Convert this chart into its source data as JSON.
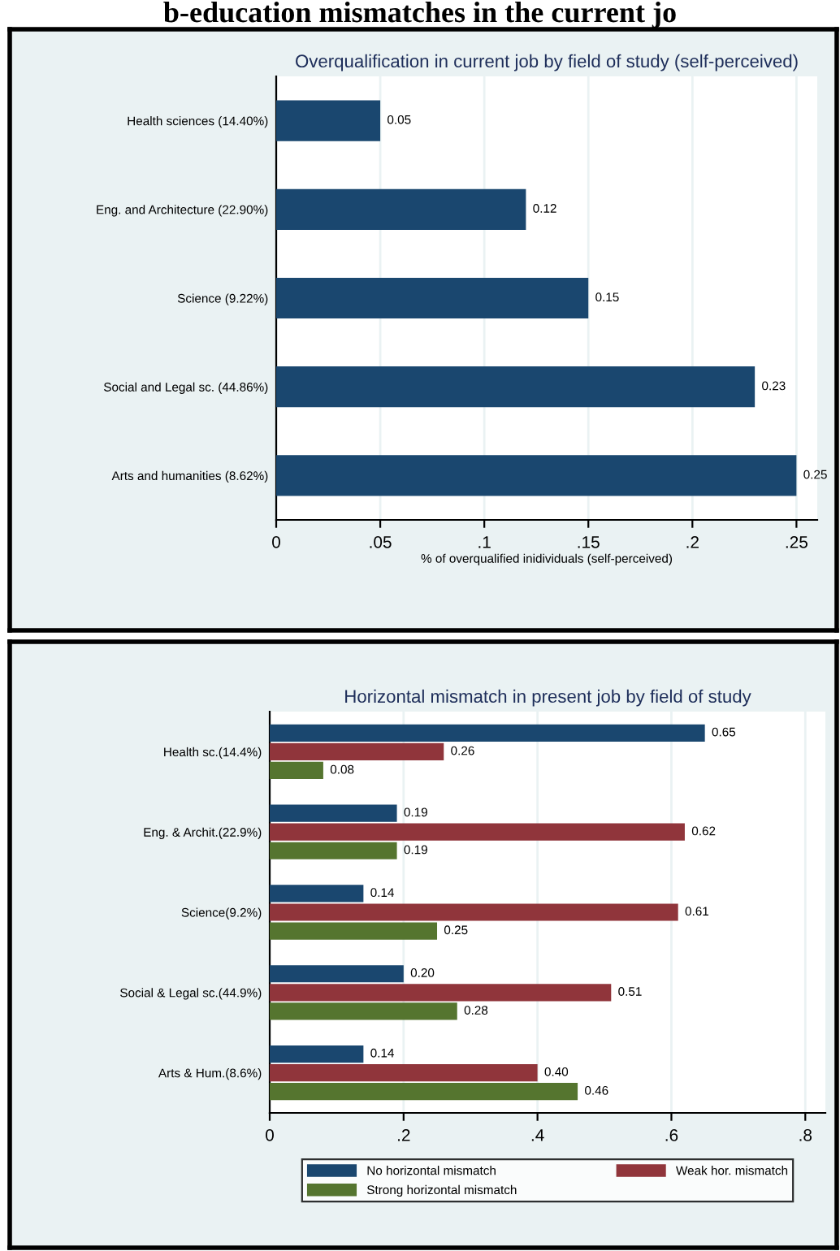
{
  "chart_data": [
    {
      "type": "bar",
      "orientation": "horizontal",
      "title": "Overqualification in current job by field of study (self-perceived)",
      "xlabel": "% of overqualified inidividuals (self-perceived)",
      "categories": [
        "Health sciences (14.40%)",
        "Eng. and Architecture (22.90%)",
        "Science (9.22%)",
        "Social and Legal sc. (44.86%)",
        "Arts and humanities (8.62%)"
      ],
      "series": [
        {
          "color": "#1a476f",
          "values": [
            0.05,
            0.12,
            0.15,
            0.23,
            0.25
          ]
        }
      ],
      "xlim": [
        0,
        0.26
      ],
      "xticks": [
        0,
        {
          "value": 0.05,
          "label": ".05"
        },
        {
          "value": 0.1,
          "label": ".1"
        },
        {
          "value": 0.15,
          "label": ".15"
        },
        {
          "value": 0.2,
          "label": ".2"
        },
        {
          "value": 0.25,
          "label": ".25"
        }
      ],
      "grid": "x",
      "data_labels": true,
      "legend": false,
      "annotations": [
        "b-education mismatches in the current jo"
      ]
    },
    {
      "type": "bar",
      "orientation": "horizontal",
      "title": "Horizontal mismatch in present job by field of study",
      "categories": [
        "Health sc.(14.4%)",
        "Eng. & Archit.(22.9%)",
        "Science(9.2%)",
        "Social & Legal sc.(44.9%)",
        "Arts & Hum.(8.6%)"
      ],
      "series": [
        {
          "name": "No horizontal mismatch",
          "color": "#1a476f",
          "values": [
            0.65,
            0.19,
            0.14,
            0.2,
            0.14
          ],
          "value_labels": [
            "0.65",
            "0.19",
            "0.14",
            "0.20",
            "0.14"
          ]
        },
        {
          "name": "Weak hor. mismatch",
          "color": "#90353b",
          "values": [
            0.26,
            0.62,
            0.61,
            0.51,
            0.4
          ],
          "value_labels": [
            "0.26",
            "0.62",
            "0.61",
            "0.51",
            "0.40"
          ]
        },
        {
          "name": "Strong horizontal mismatch",
          "color": "#55752f",
          "values": [
            0.08,
            0.19,
            0.25,
            0.28,
            0.46
          ],
          "value_labels": [
            "0.08",
            "0.19",
            "0.25",
            "0.28",
            "0.46"
          ]
        }
      ],
      "xlim": [
        0,
        0.83
      ],
      "xticks": [
        0,
        {
          "value": 0.2,
          "label": ".2"
        },
        {
          "value": 0.4,
          "label": ".4"
        },
        {
          "value": 0.6,
          "label": ".6"
        },
        {
          "value": 0.8,
          "label": ".8"
        }
      ],
      "grid": "x",
      "legend": "bottom"
    }
  ]
}
